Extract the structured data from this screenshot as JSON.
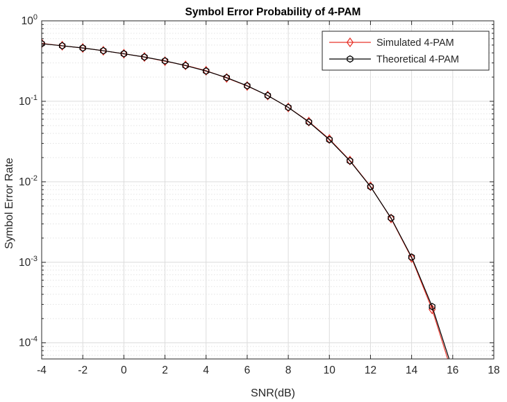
{
  "chart_data": {
    "type": "line",
    "title": "Symbol Error Probability of 4-PAM",
    "xlabel": "SNR(dB)",
    "ylabel": "Symbol Error Rate",
    "xlim": [
      -4,
      18
    ],
    "ylim": [
      6.3e-05,
      1
    ],
    "y_scale": "log",
    "grid": true,
    "minor_grid": true,
    "legend_position": "top-right",
    "x_ticks": [
      -4,
      -2,
      0,
      2,
      4,
      6,
      8,
      10,
      12,
      14,
      16,
      18
    ],
    "x_tick_labels": [
      "-4",
      "-2",
      "0",
      "2",
      "4",
      "6",
      "8",
      "10",
      "12",
      "14",
      "16",
      "18"
    ],
    "y_ticks": [
      {
        "value": 1,
        "base": "10",
        "exp": "0"
      },
      {
        "value": 0.1,
        "base": "10",
        "exp": "-1"
      },
      {
        "value": 0.01,
        "base": "10",
        "exp": "-2"
      },
      {
        "value": 0.001,
        "base": "10",
        "exp": "-3"
      },
      {
        "value": 0.0001,
        "base": "10",
        "exp": "-4"
      }
    ],
    "series": [
      {
        "name": "Simulated 4-PAM",
        "color": "#e8352b",
        "marker": "diamond",
        "x": [
          -4,
          -3,
          -2,
          -1,
          0,
          1,
          2,
          3,
          4,
          5,
          6,
          7,
          8,
          9,
          10,
          11,
          12,
          13,
          14,
          15,
          16
        ],
        "y": [
          0.525,
          0.49,
          0.46,
          0.425,
          0.39,
          0.355,
          0.315,
          0.28,
          0.24,
          0.195,
          0.155,
          0.118,
          0.084,
          0.056,
          0.034,
          0.0184,
          0.0088,
          0.0035,
          0.00113,
          0.00026,
          4e-05
        ]
      },
      {
        "name": "Theoretical 4-PAM",
        "color": "#000000",
        "marker": "hexagram",
        "x": [
          -4,
          -3,
          -2,
          -1,
          0,
          1,
          2,
          3,
          4,
          5,
          6,
          7,
          8,
          9,
          10,
          11,
          12,
          13,
          14,
          15,
          16
        ],
        "y": [
          0.52,
          0.49,
          0.46,
          0.425,
          0.39,
          0.355,
          0.318,
          0.278,
          0.238,
          0.197,
          0.156,
          0.118,
          0.084,
          0.0553,
          0.0334,
          0.0182,
          0.0087,
          0.00355,
          0.00116,
          0.000282,
          4.6e-05
        ]
      }
    ]
  }
}
